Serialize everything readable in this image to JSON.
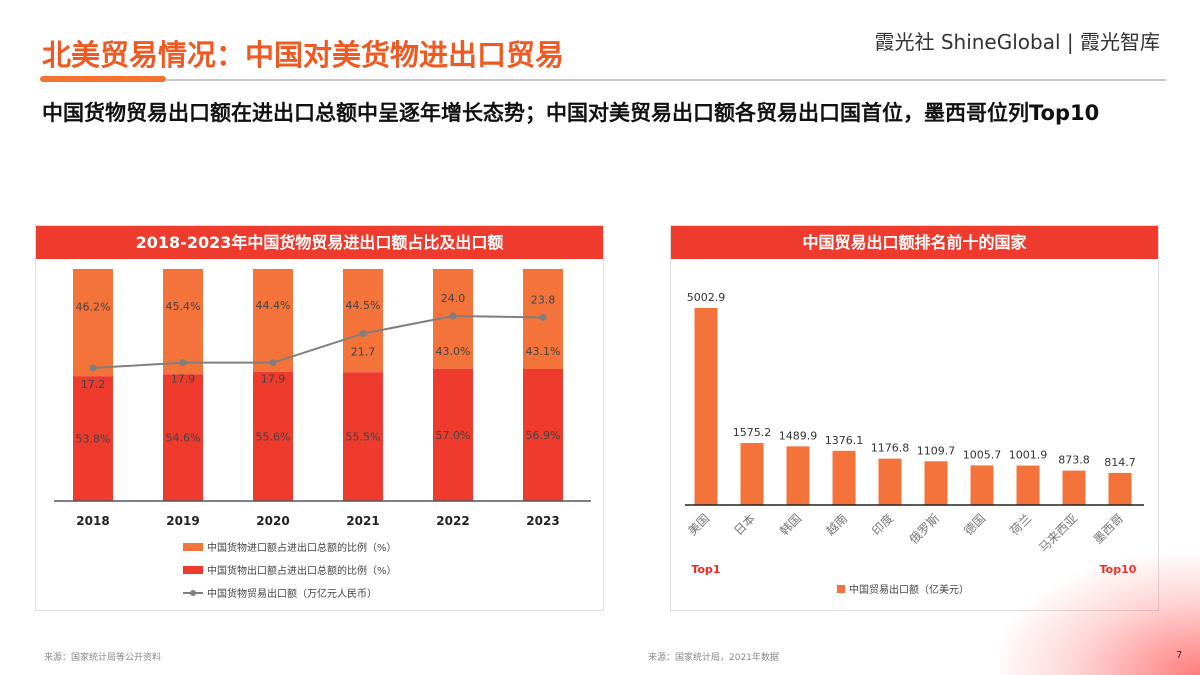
{
  "header": {
    "title": "北美贸易情况：中国对美货物进出口贸易",
    "logo": "霞光社 ShineGlobal | 霞光智库",
    "subtitle": "中国货物贸易出口额在进出口总额中呈逐年增长态势；中国对美贸易出口额各贸易出口国首位，墨西哥位列Top10"
  },
  "colors": {
    "accent": "#f05a22",
    "import": "#f4733a",
    "export": "#ee3b2e",
    "line": "#7f7f7f",
    "header_bar": "#ee3b2e"
  },
  "chart_data": [
    {
      "type": "bar",
      "stacked": true,
      "title": "2018-2023年中国货物贸易进出口额占比及出口额",
      "categories": [
        "2018",
        "2019",
        "2020",
        "2021",
        "2022",
        "2023"
      ],
      "series": [
        {
          "name": "中国货物进口额占进出口总额的比例（%）",
          "type": "bar",
          "values": [
            46.2,
            45.4,
            44.4,
            44.5,
            43.0,
            43.1
          ],
          "labels": [
            "46.2%",
            "45.4%",
            "44.4%",
            "44.5%",
            "43.0%",
            "43.1%"
          ]
        },
        {
          "name": "中国货物出口额占进出口总额的比例（%）",
          "type": "bar",
          "values": [
            53.8,
            54.6,
            55.6,
            55.5,
            57.0,
            56.9
          ],
          "labels": [
            "53.8%",
            "54.6%",
            "55.6%",
            "55.5%",
            "57.0%",
            "56.9%"
          ]
        },
        {
          "name": "中国货物贸易出口额（万亿元人民币）",
          "type": "line",
          "values": [
            17.2,
            17.9,
            17.9,
            21.7,
            24.0,
            23.8
          ],
          "labels": [
            "17.2",
            "17.9",
            "17.9",
            "21.7",
            "24.0",
            "23.8"
          ]
        }
      ],
      "legend": "bottom",
      "grid": false
    },
    {
      "type": "bar",
      "title": "中国贸易出口额排名前十的国家",
      "categories": [
        "美国",
        "日本",
        "韩国",
        "越南",
        "印度",
        "俄罗斯",
        "德国",
        "荷兰",
        "马来西亚",
        "墨西哥"
      ],
      "series": [
        {
          "name": "中国贸易出口额（亿美元）",
          "values": [
            5002.9,
            1575.2,
            1489.9,
            1376.1,
            1176.8,
            1109.7,
            1005.7,
            1001.9,
            873.8,
            814.7
          ],
          "labels": [
            "5002.9",
            "1575.2",
            "1489.9",
            "1376.1",
            "1176.8",
            "1109.7",
            "1005.7",
            "1001.9",
            "873.8",
            "814.7"
          ]
        }
      ],
      "annotations": [
        "Top1",
        "Top10"
      ],
      "legend": "bottom",
      "grid": false
    }
  ],
  "footer": {
    "source_left": "来源：国家统计局等公开资料",
    "source_right": "来源：国家统计局，2021年数据",
    "page": "7"
  }
}
